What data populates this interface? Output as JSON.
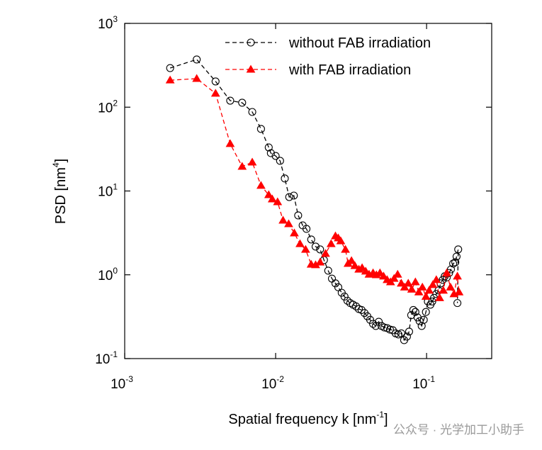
{
  "chart_data": {
    "type": "line",
    "xscale": "log",
    "yscale": "log",
    "xlabel": [
      {
        "text": "Spatial frequency k [nm"
      },
      {
        "text": "-1",
        "sup": true
      },
      {
        "text": "]"
      }
    ],
    "ylabel": [
      {
        "text": "PSD [nm"
      },
      {
        "text": "4",
        "sup": true
      },
      {
        "text": "]"
      }
    ],
    "xlim": [
      0.001,
      0.27
    ],
    "ylim": [
      0.1,
      1000
    ],
    "xticks": [
      {
        "value": 0.001,
        "label": "10",
        "exponent": "-3"
      },
      {
        "value": 0.01,
        "label": "10",
        "exponent": "-2"
      },
      {
        "value": 0.1,
        "label": "10",
        "exponent": "-1"
      }
    ],
    "yticks": [
      {
        "value": 0.1,
        "label": "10",
        "exponent": "-1"
      },
      {
        "value": 1,
        "label": "10",
        "exponent": "0"
      },
      {
        "value": 10,
        "label": "10",
        "exponent": "1"
      },
      {
        "value": 100,
        "label": "10",
        "exponent": "2"
      },
      {
        "value": 1000,
        "label": "10",
        "exponent": "3"
      }
    ],
    "legend": "upper right",
    "watermark": "公众号 · 光学加工小助手",
    "series": [
      {
        "name": "without FAB irradiation",
        "color": "#000000",
        "marker": "circle",
        "marker_fill": "none",
        "linestyle": "dashed",
        "x": [
          0.002,
          0.003,
          0.004,
          0.005,
          0.006,
          0.007,
          0.008,
          0.009,
          0.0093,
          0.01,
          0.0107,
          0.0115,
          0.0123,
          0.0132,
          0.0141,
          0.0151,
          0.016,
          0.0172,
          0.0184,
          0.0197,
          0.0209,
          0.0223,
          0.0236,
          0.0249,
          0.026,
          0.0274,
          0.0286,
          0.0299,
          0.0312,
          0.0326,
          0.0341,
          0.0356,
          0.0371,
          0.0388,
          0.0405,
          0.0423,
          0.0442,
          0.0461,
          0.0482,
          0.0503,
          0.0525,
          0.0548,
          0.0572,
          0.0597,
          0.0624,
          0.0651,
          0.068,
          0.071,
          0.0741,
          0.0766,
          0.0791,
          0.0817,
          0.0843,
          0.0871,
          0.0899,
          0.0928,
          0.0958,
          0.099,
          0.102,
          0.106,
          0.109,
          0.112,
          0.116,
          0.12,
          0.124,
          0.128,
          0.132,
          0.136,
          0.141,
          0.145,
          0.15,
          0.155,
          0.158,
          0.162,
          0.16
        ],
        "values": [
          293,
          371,
          203,
          119.7,
          113,
          87.7,
          55,
          33.1,
          28.3,
          26.2,
          22.9,
          14.1,
          8.47,
          8.81,
          5.11,
          3.89,
          3.53,
          2.64,
          2.17,
          2.01,
          1.5,
          1.12,
          0.9,
          0.79,
          0.71,
          0.61,
          0.55,
          0.49,
          0.46,
          0.44,
          0.42,
          0.39,
          0.38,
          0.35,
          0.32,
          0.29,
          0.26,
          0.245,
          0.275,
          0.245,
          0.235,
          0.231,
          0.222,
          0.218,
          0.2,
          0.194,
          0.2,
          0.166,
          0.183,
          0.21,
          0.33,
          0.38,
          0.36,
          0.31,
          0.28,
          0.245,
          0.29,
          0.36,
          0.48,
          0.44,
          0.48,
          0.53,
          0.59,
          0.65,
          0.79,
          0.87,
          0.96,
          0.93,
          1.05,
          1.16,
          1.36,
          1.41,
          1.65,
          2.01,
          0.46
        ]
      },
      {
        "name": "with FAB irradiation",
        "color": "#ff0000",
        "marker": "triangle",
        "marker_fill": "#ff0000",
        "linestyle": "dashed",
        "x": [
          0.002,
          0.003,
          0.004,
          0.005,
          0.006,
          0.007,
          0.008,
          0.009,
          0.0095,
          0.0103,
          0.0112,
          0.0122,
          0.0133,
          0.0145,
          0.0158,
          0.0172,
          0.0184,
          0.0197,
          0.0214,
          0.0233,
          0.0249,
          0.026,
          0.027,
          0.029,
          0.0302,
          0.0318,
          0.0335,
          0.0356,
          0.0374,
          0.0395,
          0.0416,
          0.0442,
          0.0465,
          0.0491,
          0.0519,
          0.0548,
          0.0577,
          0.0609,
          0.0643,
          0.068,
          0.0715,
          0.0756,
          0.0797,
          0.0843,
          0.0888,
          0.0938,
          0.099,
          0.104,
          0.11,
          0.116,
          0.122,
          0.129,
          0.136,
          0.144,
          0.152,
          0.16,
          0.164
        ],
        "values": [
          210,
          219,
          146,
          36.6,
          19.6,
          22.0,
          11.6,
          8.98,
          8.0,
          7.39,
          4.46,
          4.04,
          3.14,
          2.34,
          2.0,
          1.33,
          1.31,
          1.41,
          1.79,
          2.34,
          2.9,
          2.74,
          2.53,
          2.0,
          1.36,
          1.47,
          1.28,
          1.16,
          1.21,
          1.1,
          1.01,
          1.05,
          0.995,
          1.05,
          0.96,
          0.87,
          0.82,
          0.9,
          1.01,
          0.79,
          0.71,
          0.79,
          0.67,
          0.82,
          0.62,
          0.71,
          0.55,
          0.65,
          0.76,
          0.87,
          0.53,
          0.65,
          1.05,
          0.71,
          0.59,
          0.96,
          0.62
        ]
      }
    ]
  }
}
